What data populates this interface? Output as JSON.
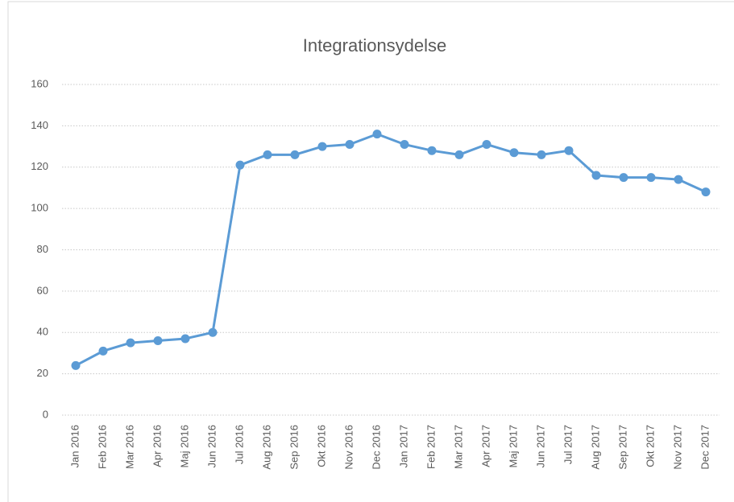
{
  "chart_data": {
    "type": "line",
    "title": "Integrationsydelse",
    "categories": [
      "Jan 2016",
      "Feb 2016",
      "Mar 2016",
      "Apr 2016",
      "Maj 2016",
      "Jun 2016",
      "Jul 2016",
      "Aug 2016",
      "Sep 2016",
      "Okt 2016",
      "Nov 2016",
      "Dec 2016",
      "Jan 2017",
      "Feb 2017",
      "Mar 2017",
      "Apr 2017",
      "Maj 2017",
      "Jun 2017",
      "Jul 2017",
      "Aug 2017",
      "Sep 2017",
      "Okt 2017",
      "Nov 2017",
      "Dec 2017"
    ],
    "series": [
      {
        "color": "#5b9bd5",
        "values": [
          24,
          31,
          35,
          36,
          37,
          40,
          121,
          126,
          126,
          130,
          131,
          136,
          131,
          128,
          126,
          131,
          127,
          126,
          128,
          116,
          115,
          115,
          114,
          108
        ]
      }
    ],
    "ylim": [
      0,
      160
    ],
    "yticks": [
      0,
      20,
      40,
      60,
      80,
      100,
      120,
      140,
      160
    ],
    "grid": true
  }
}
